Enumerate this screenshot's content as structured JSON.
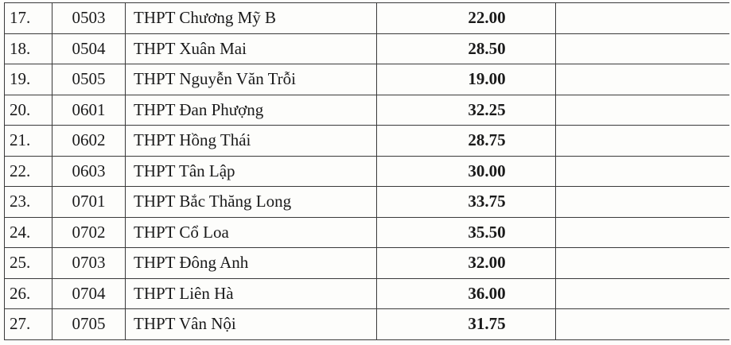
{
  "rows": [
    {
      "stt": "17.",
      "code": "0503",
      "school": "THPT Chương Mỹ B",
      "score": "22.00"
    },
    {
      "stt": "18.",
      "code": "0504",
      "school": "THPT Xuân Mai",
      "score": "28.50"
    },
    {
      "stt": "19.",
      "code": "0505",
      "school": "THPT Nguyễn Văn Trỗi",
      "score": "19.00"
    },
    {
      "stt": "20.",
      "code": "0601",
      "school": "THPT Đan Phượng",
      "score": "32.25"
    },
    {
      "stt": "21.",
      "code": "0602",
      "school": "THPT Hồng Thái",
      "score": "28.75"
    },
    {
      "stt": "22.",
      "code": "0603",
      "school": "THPT Tân Lập",
      "score": "30.00"
    },
    {
      "stt": "23.",
      "code": "0701",
      "school": "THPT Bắc Thăng Long",
      "score": "33.75"
    },
    {
      "stt": "24.",
      "code": "0702",
      "school": "THPT Cổ Loa",
      "score": "35.50"
    },
    {
      "stt": "25.",
      "code": "0703",
      "school": "THPT Đông Anh",
      "score": "32.00"
    },
    {
      "stt": "26.",
      "code": "0704",
      "school": "THPT Liên Hà",
      "score": "36.00"
    },
    {
      "stt": "27.",
      "code": "0705",
      "school": "THPT Vân Nội",
      "score": "31.75"
    }
  ]
}
